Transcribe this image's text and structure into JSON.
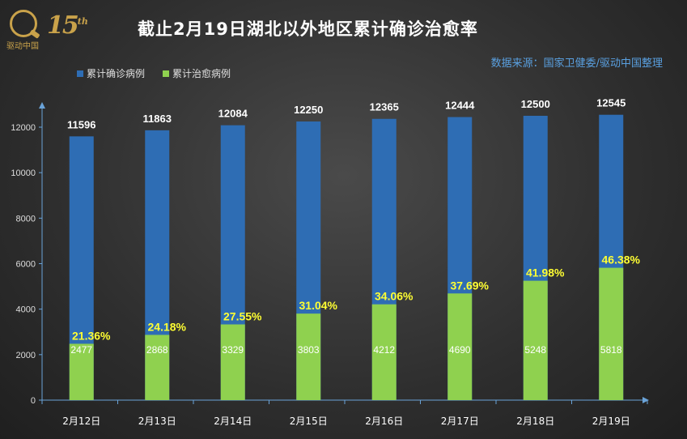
{
  "logo": {
    "name": "驱动中国",
    "anniversary": "15",
    "suffix": "th"
  },
  "title": "截止2月19日湖北以外地区累计确诊治愈率",
  "source": "数据来源：国家卫健委/驱动中国整理",
  "colors": {
    "confirmed": "#2e6db4",
    "cured": "#8fd14f",
    "pct": "#ffff33",
    "axis": "#6aa3d8"
  },
  "chart_data": {
    "type": "bar",
    "categories": [
      "2月12日",
      "2月13日",
      "2月14日",
      "2月15日",
      "2月16日",
      "2月17日",
      "2月18日",
      "2月19日"
    ],
    "series": [
      {
        "name": "累计确诊病例",
        "values": [
          11596,
          11863,
          12084,
          12250,
          12365,
          12444,
          12500,
          12545
        ]
      },
      {
        "name": "累计治愈病例",
        "values": [
          2477,
          2868,
          3329,
          3803,
          4212,
          4690,
          5248,
          5818
        ]
      }
    ],
    "cure_rate_labels": [
      "21.36%",
      "24.18%",
      "27.55%",
      "31.04%",
      "34.06%",
      "37.69%",
      "41.98%",
      "46.38%"
    ],
    "yticks": [
      0,
      2000,
      4000,
      6000,
      8000,
      10000,
      12000
    ],
    "ylim": [
      0,
      13000
    ],
    "legend_position": "top-left",
    "grid": false
  }
}
